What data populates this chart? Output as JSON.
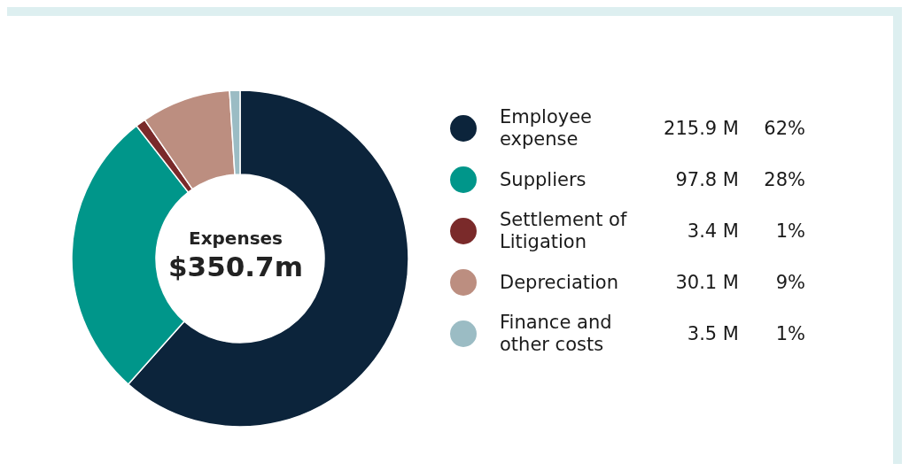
{
  "chart_data": {
    "type": "donut",
    "title": "Expenses",
    "subtitle": "$350.7m",
    "categories": [
      "Employee expense",
      "Suppliers",
      "Settlement of Litigation",
      "Depreciation",
      "Finance and other costs"
    ],
    "values": [
      215.9,
      97.8,
      3.4,
      30.1,
      3.5
    ],
    "colors": [
      "#0c243b",
      "#00968a",
      "#7a2a2a",
      "#bc8e80",
      "#9bbcc4"
    ],
    "value_labels": [
      "215.9 M",
      "97.8 M",
      "3.4 M",
      "30.1 M",
      "3.5 M"
    ],
    "annotations": [
      "62%",
      "28%",
      "1%",
      "9%",
      "1%"
    ],
    "legend": "right"
  }
}
